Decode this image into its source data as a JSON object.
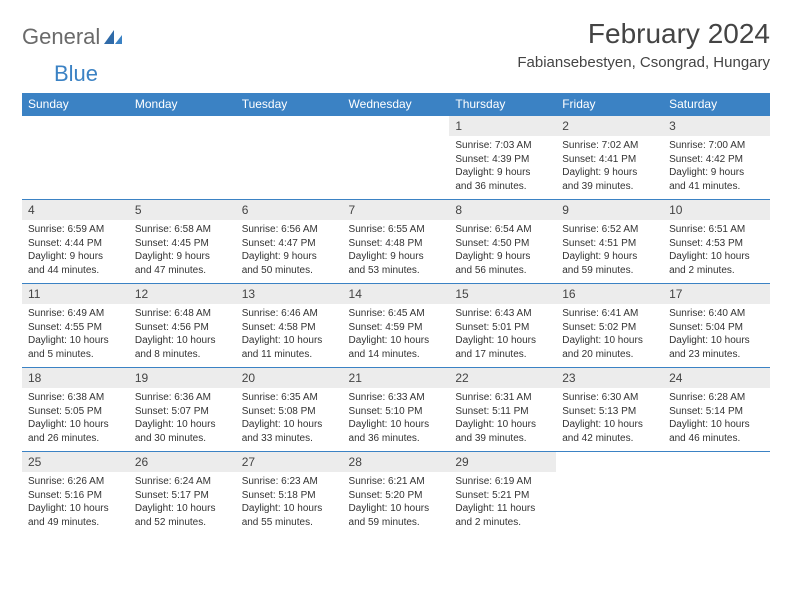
{
  "logo": {
    "text1": "General",
    "text2": "Blue"
  },
  "title": "February 2024",
  "location": "Fabiansebestyen, Csongrad, Hungary",
  "colors": {
    "header_bg": "#3b82c4",
    "header_text": "#ffffff",
    "daynum_bg": "#ececec",
    "border": "#3b82c4",
    "body_text": "#333333",
    "logo_gray": "#6a6a6a",
    "logo_blue": "#3b82c4"
  },
  "day_headers": [
    "Sunday",
    "Monday",
    "Tuesday",
    "Wednesday",
    "Thursday",
    "Friday",
    "Saturday"
  ],
  "weeks": [
    {
      "nums": [
        "",
        "",
        "",
        "",
        "1",
        "2",
        "3"
      ],
      "cells": [
        null,
        null,
        null,
        null,
        {
          "sunrise": "Sunrise: 7:03 AM",
          "sunset": "Sunset: 4:39 PM",
          "day1": "Daylight: 9 hours",
          "day2": "and 36 minutes."
        },
        {
          "sunrise": "Sunrise: 7:02 AM",
          "sunset": "Sunset: 4:41 PM",
          "day1": "Daylight: 9 hours",
          "day2": "and 39 minutes."
        },
        {
          "sunrise": "Sunrise: 7:00 AM",
          "sunset": "Sunset: 4:42 PM",
          "day1": "Daylight: 9 hours",
          "day2": "and 41 minutes."
        }
      ]
    },
    {
      "nums": [
        "4",
        "5",
        "6",
        "7",
        "8",
        "9",
        "10"
      ],
      "cells": [
        {
          "sunrise": "Sunrise: 6:59 AM",
          "sunset": "Sunset: 4:44 PM",
          "day1": "Daylight: 9 hours",
          "day2": "and 44 minutes."
        },
        {
          "sunrise": "Sunrise: 6:58 AM",
          "sunset": "Sunset: 4:45 PM",
          "day1": "Daylight: 9 hours",
          "day2": "and 47 minutes."
        },
        {
          "sunrise": "Sunrise: 6:56 AM",
          "sunset": "Sunset: 4:47 PM",
          "day1": "Daylight: 9 hours",
          "day2": "and 50 minutes."
        },
        {
          "sunrise": "Sunrise: 6:55 AM",
          "sunset": "Sunset: 4:48 PM",
          "day1": "Daylight: 9 hours",
          "day2": "and 53 minutes."
        },
        {
          "sunrise": "Sunrise: 6:54 AM",
          "sunset": "Sunset: 4:50 PM",
          "day1": "Daylight: 9 hours",
          "day2": "and 56 minutes."
        },
        {
          "sunrise": "Sunrise: 6:52 AM",
          "sunset": "Sunset: 4:51 PM",
          "day1": "Daylight: 9 hours",
          "day2": "and 59 minutes."
        },
        {
          "sunrise": "Sunrise: 6:51 AM",
          "sunset": "Sunset: 4:53 PM",
          "day1": "Daylight: 10 hours",
          "day2": "and 2 minutes."
        }
      ]
    },
    {
      "nums": [
        "11",
        "12",
        "13",
        "14",
        "15",
        "16",
        "17"
      ],
      "cells": [
        {
          "sunrise": "Sunrise: 6:49 AM",
          "sunset": "Sunset: 4:55 PM",
          "day1": "Daylight: 10 hours",
          "day2": "and 5 minutes."
        },
        {
          "sunrise": "Sunrise: 6:48 AM",
          "sunset": "Sunset: 4:56 PM",
          "day1": "Daylight: 10 hours",
          "day2": "and 8 minutes."
        },
        {
          "sunrise": "Sunrise: 6:46 AM",
          "sunset": "Sunset: 4:58 PM",
          "day1": "Daylight: 10 hours",
          "day2": "and 11 minutes."
        },
        {
          "sunrise": "Sunrise: 6:45 AM",
          "sunset": "Sunset: 4:59 PM",
          "day1": "Daylight: 10 hours",
          "day2": "and 14 minutes."
        },
        {
          "sunrise": "Sunrise: 6:43 AM",
          "sunset": "Sunset: 5:01 PM",
          "day1": "Daylight: 10 hours",
          "day2": "and 17 minutes."
        },
        {
          "sunrise": "Sunrise: 6:41 AM",
          "sunset": "Sunset: 5:02 PM",
          "day1": "Daylight: 10 hours",
          "day2": "and 20 minutes."
        },
        {
          "sunrise": "Sunrise: 6:40 AM",
          "sunset": "Sunset: 5:04 PM",
          "day1": "Daylight: 10 hours",
          "day2": "and 23 minutes."
        }
      ]
    },
    {
      "nums": [
        "18",
        "19",
        "20",
        "21",
        "22",
        "23",
        "24"
      ],
      "cells": [
        {
          "sunrise": "Sunrise: 6:38 AM",
          "sunset": "Sunset: 5:05 PM",
          "day1": "Daylight: 10 hours",
          "day2": "and 26 minutes."
        },
        {
          "sunrise": "Sunrise: 6:36 AM",
          "sunset": "Sunset: 5:07 PM",
          "day1": "Daylight: 10 hours",
          "day2": "and 30 minutes."
        },
        {
          "sunrise": "Sunrise: 6:35 AM",
          "sunset": "Sunset: 5:08 PM",
          "day1": "Daylight: 10 hours",
          "day2": "and 33 minutes."
        },
        {
          "sunrise": "Sunrise: 6:33 AM",
          "sunset": "Sunset: 5:10 PM",
          "day1": "Daylight: 10 hours",
          "day2": "and 36 minutes."
        },
        {
          "sunrise": "Sunrise: 6:31 AM",
          "sunset": "Sunset: 5:11 PM",
          "day1": "Daylight: 10 hours",
          "day2": "and 39 minutes."
        },
        {
          "sunrise": "Sunrise: 6:30 AM",
          "sunset": "Sunset: 5:13 PM",
          "day1": "Daylight: 10 hours",
          "day2": "and 42 minutes."
        },
        {
          "sunrise": "Sunrise: 6:28 AM",
          "sunset": "Sunset: 5:14 PM",
          "day1": "Daylight: 10 hours",
          "day2": "and 46 minutes."
        }
      ]
    },
    {
      "nums": [
        "25",
        "26",
        "27",
        "28",
        "29",
        "",
        ""
      ],
      "cells": [
        {
          "sunrise": "Sunrise: 6:26 AM",
          "sunset": "Sunset: 5:16 PM",
          "day1": "Daylight: 10 hours",
          "day2": "and 49 minutes."
        },
        {
          "sunrise": "Sunrise: 6:24 AM",
          "sunset": "Sunset: 5:17 PM",
          "day1": "Daylight: 10 hours",
          "day2": "and 52 minutes."
        },
        {
          "sunrise": "Sunrise: 6:23 AM",
          "sunset": "Sunset: 5:18 PM",
          "day1": "Daylight: 10 hours",
          "day2": "and 55 minutes."
        },
        {
          "sunrise": "Sunrise: 6:21 AM",
          "sunset": "Sunset: 5:20 PM",
          "day1": "Daylight: 10 hours",
          "day2": "and 59 minutes."
        },
        {
          "sunrise": "Sunrise: 6:19 AM",
          "sunset": "Sunset: 5:21 PM",
          "day1": "Daylight: 11 hours",
          "day2": "and 2 minutes."
        },
        null,
        null
      ]
    }
  ]
}
